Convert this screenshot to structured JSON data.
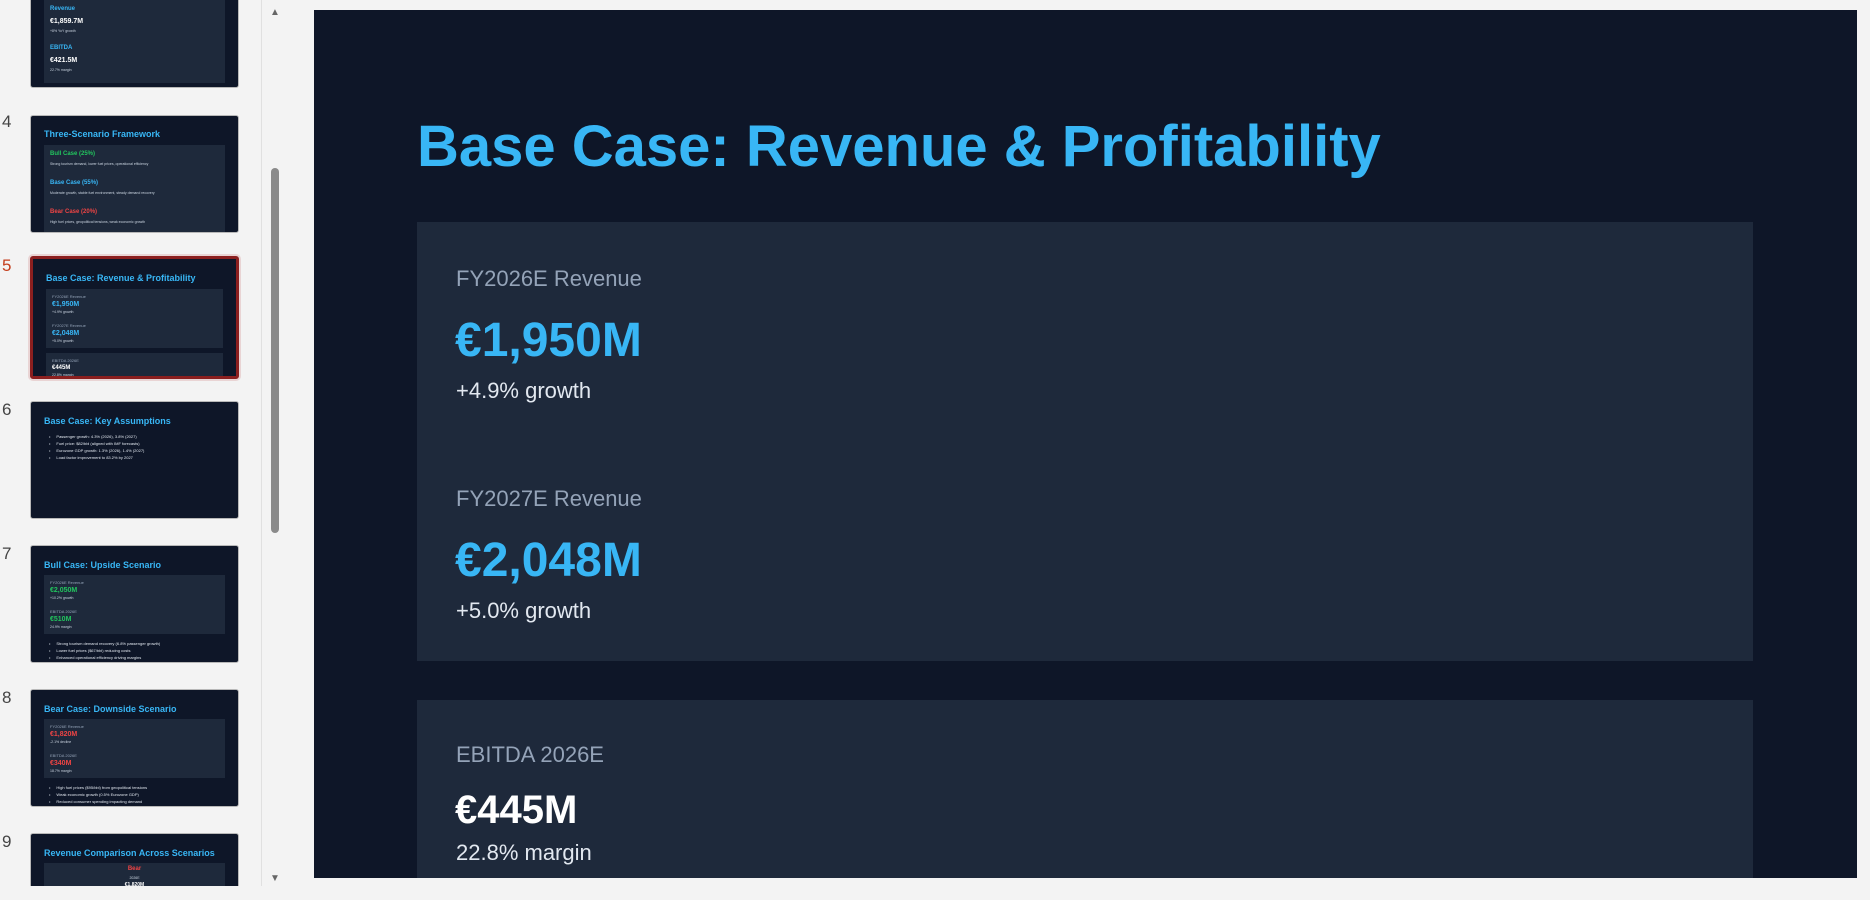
{
  "thumbnails": {
    "s3": {
      "number": "",
      "rev_label": "Revenue",
      "rev_value": "€1,859.7M",
      "rev_note": "+8% YoY growth",
      "ebitda_label": "EBITDA",
      "ebitda_value": "€421.5M",
      "ebitda_note": "22.7% margin"
    },
    "s4": {
      "number": "4",
      "title": "Three-Scenario Framework",
      "bull": "Bull Case (25%)",
      "bull_desc": "Strong tourism demand, lower fuel prices, operational efficiency",
      "base": "Base Case (55%)",
      "base_desc": "Moderate growth, stable fuel environment, steady demand recovery",
      "bear": "Bear Case (20%)",
      "bear_desc": "High fuel prices, geopolitical tensions, weak economic growth"
    },
    "s5": {
      "number": "5",
      "title": "Base Case: Revenue & Profitability",
      "l1": "FY2026E Revenue",
      "v1": "€1,950M",
      "n1": "+4.9% growth",
      "l2": "FY2027E Revenue",
      "v2": "€2,048M",
      "n2": "+5.0% growth",
      "l3": "EBITDA 2026E",
      "v3": "€445M",
      "n3": "22.8% margin"
    },
    "s6": {
      "number": "6",
      "title": "Base Case: Key Assumptions",
      "bullets": [
        "Passenger growth: 4.3% (2026), 3.8% (2027)",
        "Fuel price: $82/bbl (aligned with IMF forecasts)",
        "Eurozone GDP growth: 1.3% (2026), 1.4% (2027)",
        "Load factor improvement to 83.2% by 2027"
      ]
    },
    "s7": {
      "number": "7",
      "title": "Bull Case: Upside Scenario",
      "l1": "FY2026E Revenue",
      "v1": "€2,050M",
      "n1": "+10.2% growth",
      "l2": "EBITDA 2026E",
      "v2": "€510M",
      "n2": "24.9% margin",
      "bullets": [
        "Strong tourism demand recovery (6.8% passenger growth)",
        "Lower fuel prices ($67/bbl) reducing costs",
        "Enhanced operational efficiency driving margins"
      ]
    },
    "s8": {
      "number": "8",
      "title": "Bear Case: Downside Scenario",
      "l1": "FY2026E Revenue",
      "v1": "€1,820M",
      "n1": "-2.1% decline",
      "l2": "EBITDA 2026E",
      "v2": "€340M",
      "n2": "18.7% margin",
      "bullets": [
        "High fuel prices ($95/bbl) from geopolitical tensions",
        "Weak economic growth (0.5% Eurozone GDP)",
        "Reduced consumer spending impacting demand"
      ]
    },
    "s9": {
      "number": "9",
      "title": "Revenue Comparison Across Scenarios",
      "bear": "Bear",
      "bear_sub": "2026E",
      "bear_val": "€1,820M"
    }
  },
  "slide": {
    "title": "Base Case: Revenue & Profitability",
    "card1": {
      "label1": "FY2026E Revenue",
      "value1": "€1,950M",
      "sub1": "+4.9% growth",
      "label2": "FY2027E Revenue",
      "value2": "€2,048M",
      "sub2": "+5.0% growth"
    },
    "card2": {
      "label": "EBITDA 2026E",
      "value": "€445M",
      "sub": "22.8% margin"
    }
  },
  "colors": {
    "slide_bg": "#0e1628",
    "card_bg": "#1e293b",
    "accent_blue": "#38b6f5",
    "bull_green": "#22c55e",
    "bear_red": "#ef4444",
    "selected_border": "#8b1f1f"
  },
  "icons": {
    "scroll_up": "triangle-up",
    "scroll_down": "triangle-down"
  }
}
